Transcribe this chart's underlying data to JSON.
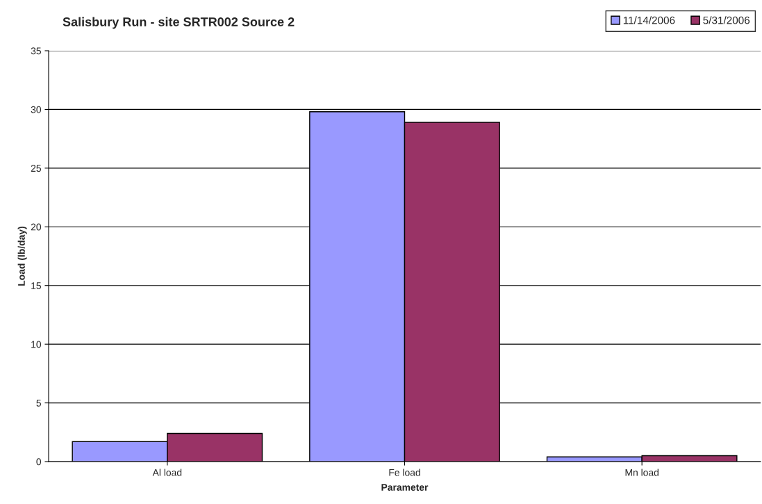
{
  "chart_data": {
    "type": "bar",
    "title": "Salisbury Run - site SRTR002 Source 2",
    "xlabel": "Parameter",
    "ylabel": "Load (lb/day)",
    "categories": [
      "Al load",
      "Fe load",
      "Mn load"
    ],
    "series": [
      {
        "name": "11/14/2006",
        "color": "#9999ff",
        "values": [
          1.7,
          29.8,
          0.4
        ]
      },
      {
        "name": "5/31/2006",
        "color": "#993366",
        "values": [
          2.4,
          28.9,
          0.5
        ]
      }
    ],
    "ylim": [
      0,
      35
    ],
    "yticks": [
      0,
      5,
      10,
      15,
      20,
      25,
      30,
      35
    ],
    "grid": "y",
    "legend": "top right"
  }
}
